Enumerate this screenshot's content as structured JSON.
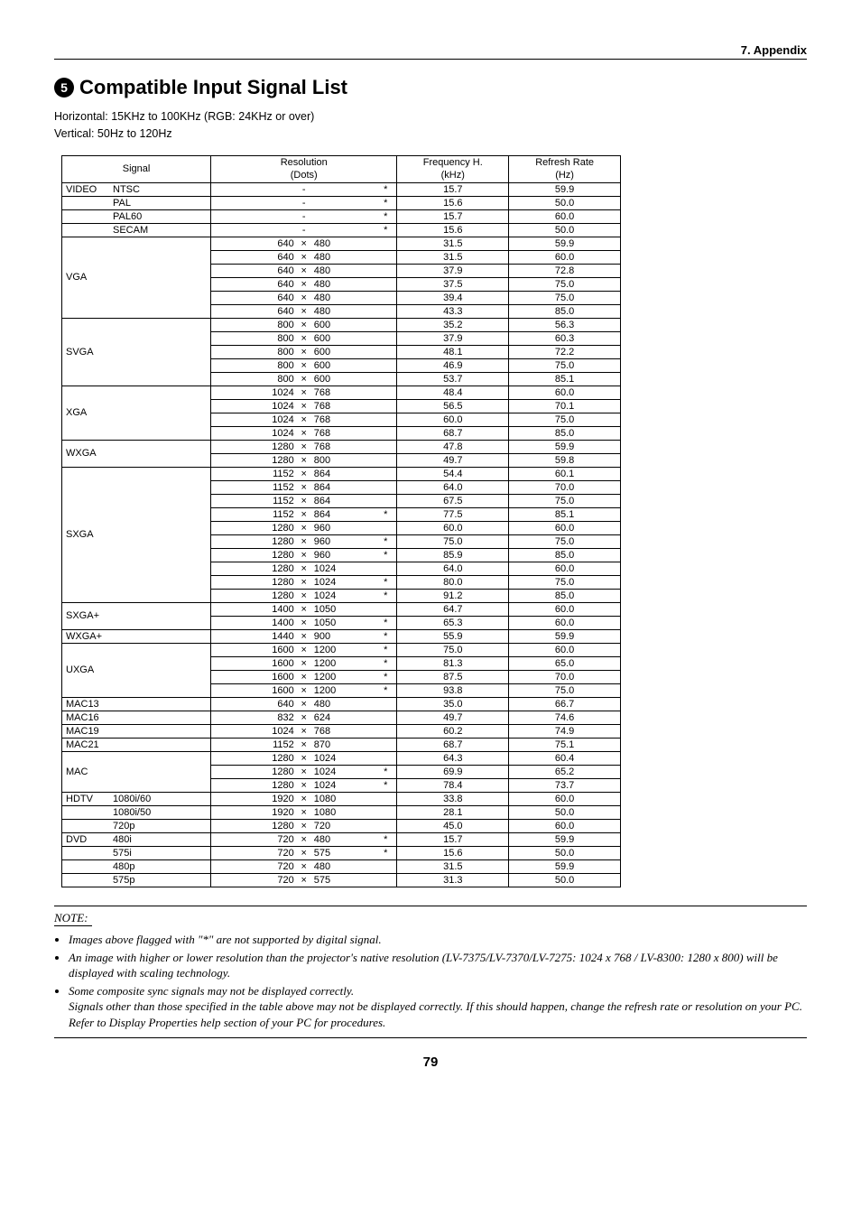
{
  "header": {
    "section": "7. Appendix"
  },
  "title": {
    "num": "5",
    "text": "Compatible Input Signal List"
  },
  "subtitle": {
    "line1": "Horizontal: 15KHz to 100KHz (RGB: 24KHz or over)",
    "line2": "Vertical: 50Hz to 120Hz"
  },
  "table": {
    "headers": {
      "signal": "Signal",
      "resolution": "Resolution",
      "dots": "(Dots)",
      "freq": "Frequency H.",
      "khz": "(kHz)",
      "refresh": "Refresh Rate",
      "hz": "(Hz)"
    },
    "groups": [
      {
        "label": "VIDEO",
        "rows": [
          {
            "sub": "NTSC",
            "w": "",
            "x": "-",
            "h": "",
            "star": "*",
            "f": "15.7",
            "r": "59.9"
          },
          {
            "sub": "PAL",
            "w": "",
            "x": "-",
            "h": "",
            "star": "*",
            "f": "15.6",
            "r": "50.0"
          },
          {
            "sub": "PAL60",
            "w": "",
            "x": "-",
            "h": "",
            "star": "*",
            "f": "15.7",
            "r": "60.0"
          },
          {
            "sub": "SECAM",
            "w": "",
            "x": "-",
            "h": "",
            "star": "*",
            "f": "15.6",
            "r": "50.0"
          }
        ]
      },
      {
        "label": "VGA",
        "rows": [
          {
            "sub": "",
            "w": "640",
            "x": "×",
            "h": "480",
            "star": "",
            "f": "31.5",
            "r": "59.9"
          },
          {
            "sub": "",
            "w": "640",
            "x": "×",
            "h": "480",
            "star": "",
            "f": "31.5",
            "r": "60.0"
          },
          {
            "sub": "",
            "w": "640",
            "x": "×",
            "h": "480",
            "star": "",
            "f": "37.9",
            "r": "72.8"
          },
          {
            "sub": "",
            "w": "640",
            "x": "×",
            "h": "480",
            "star": "",
            "f": "37.5",
            "r": "75.0"
          },
          {
            "sub": "",
            "w": "640",
            "x": "×",
            "h": "480",
            "star": "",
            "f": "39.4",
            "r": "75.0"
          },
          {
            "sub": "",
            "w": "640",
            "x": "×",
            "h": "480",
            "star": "",
            "f": "43.3",
            "r": "85.0"
          }
        ]
      },
      {
        "label": "SVGA",
        "rows": [
          {
            "sub": "",
            "w": "800",
            "x": "×",
            "h": "600",
            "star": "",
            "f": "35.2",
            "r": "56.3"
          },
          {
            "sub": "",
            "w": "800",
            "x": "×",
            "h": "600",
            "star": "",
            "f": "37.9",
            "r": "60.3"
          },
          {
            "sub": "",
            "w": "800",
            "x": "×",
            "h": "600",
            "star": "",
            "f": "48.1",
            "r": "72.2"
          },
          {
            "sub": "",
            "w": "800",
            "x": "×",
            "h": "600",
            "star": "",
            "f": "46.9",
            "r": "75.0"
          },
          {
            "sub": "",
            "w": "800",
            "x": "×",
            "h": "600",
            "star": "",
            "f": "53.7",
            "r": "85.1"
          }
        ]
      },
      {
        "label": "XGA",
        "rows": [
          {
            "sub": "",
            "w": "1024",
            "x": "×",
            "h": "768",
            "star": "",
            "f": "48.4",
            "r": "60.0"
          },
          {
            "sub": "",
            "w": "1024",
            "x": "×",
            "h": "768",
            "star": "",
            "f": "56.5",
            "r": "70.1"
          },
          {
            "sub": "",
            "w": "1024",
            "x": "×",
            "h": "768",
            "star": "",
            "f": "60.0",
            "r": "75.0"
          },
          {
            "sub": "",
            "w": "1024",
            "x": "×",
            "h": "768",
            "star": "",
            "f": "68.7",
            "r": "85.0"
          }
        ]
      },
      {
        "label": "WXGA",
        "rows": [
          {
            "sub": "",
            "w": "1280",
            "x": "×",
            "h": "768",
            "star": "",
            "f": "47.8",
            "r": "59.9"
          },
          {
            "sub": "",
            "w": "1280",
            "x": "×",
            "h": "800",
            "star": "",
            "f": "49.7",
            "r": "59.8"
          }
        ]
      },
      {
        "label": "SXGA",
        "rows": [
          {
            "sub": "",
            "w": "1152",
            "x": "×",
            "h": "864",
            "star": "",
            "f": "54.4",
            "r": "60.1"
          },
          {
            "sub": "",
            "w": "1152",
            "x": "×",
            "h": "864",
            "star": "",
            "f": "64.0",
            "r": "70.0"
          },
          {
            "sub": "",
            "w": "1152",
            "x": "×",
            "h": "864",
            "star": "",
            "f": "67.5",
            "r": "75.0"
          },
          {
            "sub": "",
            "w": "1152",
            "x": "×",
            "h": "864",
            "star": "*",
            "f": "77.5",
            "r": "85.1"
          },
          {
            "sub": "",
            "w": "1280",
            "x": "×",
            "h": "960",
            "star": "",
            "f": "60.0",
            "r": "60.0"
          },
          {
            "sub": "",
            "w": "1280",
            "x": "×",
            "h": "960",
            "star": "*",
            "f": "75.0",
            "r": "75.0"
          },
          {
            "sub": "",
            "w": "1280",
            "x": "×",
            "h": "960",
            "star": "*",
            "f": "85.9",
            "r": "85.0"
          },
          {
            "sub": "",
            "w": "1280",
            "x": "×",
            "h": "1024",
            "star": "",
            "f": "64.0",
            "r": "60.0"
          },
          {
            "sub": "",
            "w": "1280",
            "x": "×",
            "h": "1024",
            "star": "*",
            "f": "80.0",
            "r": "75.0"
          },
          {
            "sub": "",
            "w": "1280",
            "x": "×",
            "h": "1024",
            "star": "*",
            "f": "91.2",
            "r": "85.0"
          }
        ]
      },
      {
        "label": "SXGA+",
        "rows": [
          {
            "sub": "",
            "w": "1400",
            "x": "×",
            "h": "1050",
            "star": "",
            "f": "64.7",
            "r": "60.0"
          },
          {
            "sub": "",
            "w": "1400",
            "x": "×",
            "h": "1050",
            "star": "*",
            "f": "65.3",
            "r": "60.0"
          }
        ]
      },
      {
        "label": "WXGA+",
        "rows": [
          {
            "sub": "",
            "w": "1440",
            "x": "×",
            "h": "900",
            "star": "*",
            "f": "55.9",
            "r": "59.9"
          }
        ]
      },
      {
        "label": "UXGA",
        "rows": [
          {
            "sub": "",
            "w": "1600",
            "x": "×",
            "h": "1200",
            "star": "*",
            "f": "75.0",
            "r": "60.0"
          },
          {
            "sub": "",
            "w": "1600",
            "x": "×",
            "h": "1200",
            "star": "*",
            "f": "81.3",
            "r": "65.0"
          },
          {
            "sub": "",
            "w": "1600",
            "x": "×",
            "h": "1200",
            "star": "*",
            "f": "87.5",
            "r": "70.0"
          },
          {
            "sub": "",
            "w": "1600",
            "x": "×",
            "h": "1200",
            "star": "*",
            "f": "93.8",
            "r": "75.0"
          }
        ]
      },
      {
        "label": "MAC13",
        "rows": [
          {
            "sub": "",
            "w": "640",
            "x": "×",
            "h": "480",
            "star": "",
            "f": "35.0",
            "r": "66.7"
          }
        ]
      },
      {
        "label": "MAC16",
        "rows": [
          {
            "sub": "",
            "w": "832",
            "x": "×",
            "h": "624",
            "star": "",
            "f": "49.7",
            "r": "74.6"
          }
        ]
      },
      {
        "label": "MAC19",
        "rows": [
          {
            "sub": "",
            "w": "1024",
            "x": "×",
            "h": "768",
            "star": "",
            "f": "60.2",
            "r": "74.9"
          }
        ]
      },
      {
        "label": "MAC21",
        "rows": [
          {
            "sub": "",
            "w": "1152",
            "x": "×",
            "h": "870",
            "star": "",
            "f": "68.7",
            "r": "75.1"
          }
        ]
      },
      {
        "label": "MAC",
        "rows": [
          {
            "sub": "",
            "w": "1280",
            "x": "×",
            "h": "1024",
            "star": "",
            "f": "64.3",
            "r": "60.4"
          },
          {
            "sub": "",
            "w": "1280",
            "x": "×",
            "h": "1024",
            "star": "*",
            "f": "69.9",
            "r": "65.2"
          },
          {
            "sub": "",
            "w": "1280",
            "x": "×",
            "h": "1024",
            "star": "*",
            "f": "78.4",
            "r": "73.7"
          }
        ]
      },
      {
        "label": "HDTV",
        "rows": [
          {
            "sub": "1080i/60",
            "w": "1920",
            "x": "×",
            "h": "1080",
            "star": "",
            "f": "33.8",
            "r": "60.0"
          },
          {
            "sub": "1080i/50",
            "w": "1920",
            "x": "×",
            "h": "1080",
            "star": "",
            "f": "28.1",
            "r": "50.0"
          },
          {
            "sub": "720p",
            "w": "1280",
            "x": "×",
            "h": "720",
            "star": "",
            "f": "45.0",
            "r": "60.0"
          }
        ]
      },
      {
        "label": "DVD",
        "rows": [
          {
            "sub": "480i",
            "w": "720",
            "x": "×",
            "h": "480",
            "star": "*",
            "f": "15.7",
            "r": "59.9"
          },
          {
            "sub": "575i",
            "w": "720",
            "x": "×",
            "h": "575",
            "star": "*",
            "f": "15.6",
            "r": "50.0"
          },
          {
            "sub": "480p",
            "w": "720",
            "x": "×",
            "h": "480",
            "star": "",
            "f": "31.5",
            "r": "59.9"
          },
          {
            "sub": "575p",
            "w": "720",
            "x": "×",
            "h": "575",
            "star": "",
            "f": "31.3",
            "r": "50.0"
          }
        ]
      }
    ]
  },
  "note": {
    "header": "NOTE:",
    "items": [
      "Images above flagged with \"*\" are not supported by digital signal.",
      "An image with higher or lower resolution than the projector's native resolution (LV-7375/LV-7370/LV-7275: 1024 x 768 / LV-8300: 1280 x 800) will be displayed with scaling technology.",
      "Some composite sync signals may not be displayed correctly.\nSignals other than those specified in the table above may not be displayed correctly. If this should happen, change the refresh rate or resolution on your PC. Refer to Display Properties help section of your PC for procedures."
    ]
  },
  "page": "79"
}
